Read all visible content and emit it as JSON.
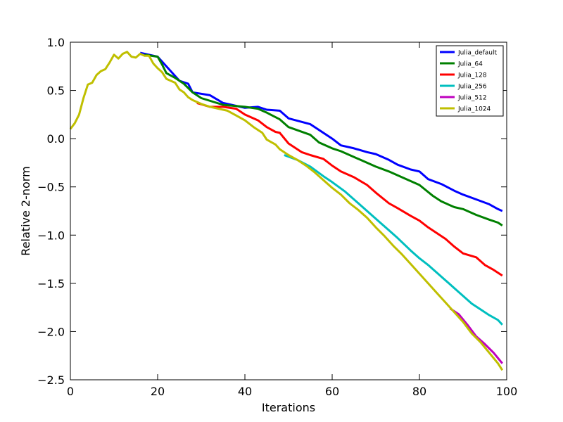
{
  "chart_data": {
    "type": "line",
    "title": "",
    "xlabel": "Iterations",
    "ylabel": "Relative 2-norm",
    "xlim": [
      0,
      100
    ],
    "ylim": [
      -2.5,
      1.0
    ],
    "xticks": [
      0,
      20,
      40,
      60,
      80,
      100
    ],
    "xtick_labels": [
      "0",
      "20",
      "40",
      "60",
      "80",
      "100"
    ],
    "yticks": [
      1.0,
      0.5,
      0.0,
      -0.5,
      -1.0,
      -1.5,
      -2.0,
      -2.5
    ],
    "ytick_labels": [
      "1.0",
      "0.5",
      "0.0",
      "−0.5",
      "−1.0",
      "−1.5",
      "−2.0",
      "−2.5"
    ],
    "grid": false,
    "legend_position": "top-right",
    "series": [
      {
        "name": "Julia_default",
        "color": "#0000ff",
        "points": [
          [
            16,
            0.89
          ],
          [
            20,
            0.85
          ],
          [
            23,
            0.7
          ],
          [
            25,
            0.6
          ],
          [
            27,
            0.57
          ],
          [
            28,
            0.48
          ],
          [
            32,
            0.45
          ],
          [
            35,
            0.37
          ],
          [
            40,
            0.32
          ],
          [
            43,
            0.33
          ],
          [
            45,
            0.3
          ],
          [
            48,
            0.29
          ],
          [
            50,
            0.21
          ],
          [
            55,
            0.15
          ],
          [
            60,
            0.0
          ],
          [
            62,
            -0.07
          ],
          [
            65,
            -0.1
          ],
          [
            68,
            -0.14
          ],
          [
            70,
            -0.16
          ],
          [
            73,
            -0.22
          ],
          [
            75,
            -0.27
          ],
          [
            78,
            -0.32
          ],
          [
            80,
            -0.34
          ],
          [
            82,
            -0.42
          ],
          [
            85,
            -0.47
          ],
          [
            88,
            -0.54
          ],
          [
            90,
            -0.58
          ],
          [
            93,
            -0.63
          ],
          [
            96,
            -0.68
          ],
          [
            98,
            -0.73
          ],
          [
            99,
            -0.75
          ]
        ]
      },
      {
        "name": "Julia_64",
        "color": "#008000",
        "points": [
          [
            17,
            0.87
          ],
          [
            20,
            0.85
          ],
          [
            21,
            0.77
          ],
          [
            22,
            0.68
          ],
          [
            24,
            0.63
          ],
          [
            26,
            0.57
          ],
          [
            28,
            0.48
          ],
          [
            30,
            0.42
          ],
          [
            35,
            0.35
          ],
          [
            40,
            0.33
          ],
          [
            43,
            0.31
          ],
          [
            45,
            0.27
          ],
          [
            48,
            0.2
          ],
          [
            50,
            0.12
          ],
          [
            55,
            0.04
          ],
          [
            57,
            -0.04
          ],
          [
            60,
            -0.1
          ],
          [
            62,
            -0.13
          ],
          [
            65,
            -0.19
          ],
          [
            68,
            -0.25
          ],
          [
            70,
            -0.29
          ],
          [
            73,
            -0.34
          ],
          [
            75,
            -0.38
          ],
          [
            78,
            -0.44
          ],
          [
            80,
            -0.48
          ],
          [
            83,
            -0.59
          ],
          [
            85,
            -0.65
          ],
          [
            88,
            -0.71
          ],
          [
            90,
            -0.73
          ],
          [
            93,
            -0.79
          ],
          [
            96,
            -0.84
          ],
          [
            98,
            -0.87
          ],
          [
            99,
            -0.9
          ]
        ]
      },
      {
        "name": "Julia_128",
        "color": "#ff0000",
        "points": [
          [
            29,
            0.37
          ],
          [
            32,
            0.33
          ],
          [
            35,
            0.33
          ],
          [
            38,
            0.31
          ],
          [
            40,
            0.25
          ],
          [
            43,
            0.19
          ],
          [
            45,
            0.12
          ],
          [
            47,
            0.07
          ],
          [
            48,
            0.06
          ],
          [
            50,
            -0.05
          ],
          [
            53,
            -0.14
          ],
          [
            55,
            -0.17
          ],
          [
            58,
            -0.21
          ],
          [
            60,
            -0.28
          ],
          [
            62,
            -0.34
          ],
          [
            65,
            -0.4
          ],
          [
            68,
            -0.48
          ],
          [
            70,
            -0.56
          ],
          [
            73,
            -0.67
          ],
          [
            75,
            -0.72
          ],
          [
            78,
            -0.8
          ],
          [
            80,
            -0.85
          ],
          [
            82,
            -0.92
          ],
          [
            84,
            -0.98
          ],
          [
            86,
            -1.04
          ],
          [
            88,
            -1.12
          ],
          [
            90,
            -1.19
          ],
          [
            93,
            -1.23
          ],
          [
            95,
            -1.31
          ],
          [
            97,
            -1.36
          ],
          [
            99,
            -1.42
          ]
        ]
      },
      {
        "name": "Julia_256",
        "color": "#00bfbf",
        "points": [
          [
            49,
            -0.17
          ],
          [
            52,
            -0.22
          ],
          [
            55,
            -0.29
          ],
          [
            58,
            -0.39
          ],
          [
            60,
            -0.45
          ],
          [
            63,
            -0.55
          ],
          [
            66,
            -0.67
          ],
          [
            69,
            -0.79
          ],
          [
            71,
            -0.87
          ],
          [
            73,
            -0.95
          ],
          [
            75,
            -1.03
          ],
          [
            78,
            -1.16
          ],
          [
            80,
            -1.24
          ],
          [
            82,
            -1.31
          ],
          [
            84,
            -1.39
          ],
          [
            86,
            -1.47
          ],
          [
            88,
            -1.55
          ],
          [
            90,
            -1.63
          ],
          [
            92,
            -1.71
          ],
          [
            94,
            -1.77
          ],
          [
            96,
            -1.83
          ],
          [
            98,
            -1.88
          ],
          [
            99,
            -1.93
          ]
        ]
      },
      {
        "name": "Julia_512",
        "color": "#bf00bf",
        "points": [
          [
            87,
            -1.76
          ],
          [
            89,
            -1.82
          ],
          [
            91,
            -1.93
          ],
          [
            93,
            -2.05
          ],
          [
            95,
            -2.13
          ],
          [
            97,
            -2.22
          ],
          [
            99,
            -2.33
          ]
        ]
      },
      {
        "name": "Julia_1024",
        "color": "#bfbf00",
        "points": [
          [
            0,
            0.1
          ],
          [
            1,
            0.16
          ],
          [
            2,
            0.25
          ],
          [
            3,
            0.42
          ],
          [
            4,
            0.56
          ],
          [
            5,
            0.58
          ],
          [
            6,
            0.66
          ],
          [
            7,
            0.7
          ],
          [
            8,
            0.72
          ],
          [
            9,
            0.79
          ],
          [
            10,
            0.87
          ],
          [
            11,
            0.83
          ],
          [
            12,
            0.88
          ],
          [
            13,
            0.9
          ],
          [
            14,
            0.85
          ],
          [
            15,
            0.84
          ],
          [
            16,
            0.88
          ],
          [
            17,
            0.86
          ],
          [
            18,
            0.86
          ],
          [
            19,
            0.78
          ],
          [
            20,
            0.73
          ],
          [
            21,
            0.69
          ],
          [
            22,
            0.62
          ],
          [
            23,
            0.6
          ],
          [
            24,
            0.58
          ],
          [
            25,
            0.51
          ],
          [
            26,
            0.48
          ],
          [
            27,
            0.43
          ],
          [
            28,
            0.4
          ],
          [
            30,
            0.36
          ],
          [
            32,
            0.33
          ],
          [
            34,
            0.31
          ],
          [
            36,
            0.29
          ],
          [
            38,
            0.24
          ],
          [
            40,
            0.19
          ],
          [
            42,
            0.12
          ],
          [
            44,
            0.06
          ],
          [
            45,
            -0.01
          ],
          [
            47,
            -0.06
          ],
          [
            48,
            -0.11
          ],
          [
            50,
            -0.17
          ],
          [
            52,
            -0.22
          ],
          [
            54,
            -0.28
          ],
          [
            56,
            -0.35
          ],
          [
            58,
            -0.43
          ],
          [
            60,
            -0.51
          ],
          [
            62,
            -0.58
          ],
          [
            64,
            -0.67
          ],
          [
            66,
            -0.74
          ],
          [
            68,
            -0.82
          ],
          [
            70,
            -0.92
          ],
          [
            72,
            -1.01
          ],
          [
            74,
            -1.11
          ],
          [
            76,
            -1.2
          ],
          [
            78,
            -1.3
          ],
          [
            80,
            -1.4
          ],
          [
            82,
            -1.5
          ],
          [
            84,
            -1.6
          ],
          [
            86,
            -1.7
          ],
          [
            88,
            -1.8
          ],
          [
            90,
            -1.9
          ],
          [
            92,
            -2.02
          ],
          [
            94,
            -2.11
          ],
          [
            96,
            -2.22
          ],
          [
            98,
            -2.33
          ],
          [
            99,
            -2.4
          ]
        ]
      }
    ]
  }
}
